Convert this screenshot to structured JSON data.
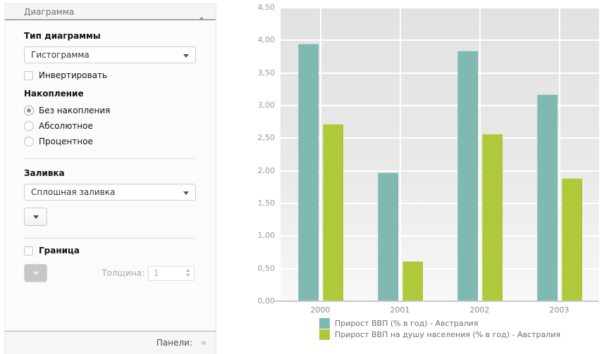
{
  "panel": {
    "title": "Диаграмма",
    "chart_type_label": "Тип диаграммы",
    "chart_type_value": "Гистограмма",
    "invert_label": "Инвертировать",
    "stacking_label": "Накопление",
    "stacking_options": [
      {
        "label": "Без накопления",
        "selected": true
      },
      {
        "label": "Абсолютное",
        "selected": false
      },
      {
        "label": "Процентное",
        "selected": false
      }
    ],
    "fill_label": "Заливка",
    "fill_value": "Сплошная заливка",
    "border_label": "Граница",
    "thickness_label": "Толщина:",
    "thickness_value": "1",
    "panels_label": "Панели:",
    "panels_expand_icon": "»"
  },
  "chart_data": {
    "type": "bar",
    "categories": [
      "2000",
      "2001",
      "2002",
      "2003"
    ],
    "series": [
      {
        "name": "Прирост ВВП (% в год) - Австралия",
        "color": "#7fb9b1",
        "values": [
          3.95,
          1.97,
          3.84,
          3.17
        ]
      },
      {
        "name": "Прирост ВВП на душу населения (% в год) - Австралия",
        "color": "#aeca3a",
        "values": [
          2.72,
          0.62,
          2.57,
          1.89
        ]
      }
    ],
    "ylim": [
      0,
      4.5
    ],
    "ytick_step": 0.5,
    "ytick_labels": [
      "0,00",
      "0,50",
      "1,00",
      "1,50",
      "2,00",
      "2,50",
      "3,00",
      "3,50",
      "4,00",
      "4,50"
    ],
    "grid": true,
    "legend_position": "bottom",
    "colors": {
      "plot_bg_top": "#e2e2e2",
      "plot_bg_bottom": "#f8f8f8",
      "gridline": "#ffffff",
      "axis": "#c9c9c9"
    }
  }
}
